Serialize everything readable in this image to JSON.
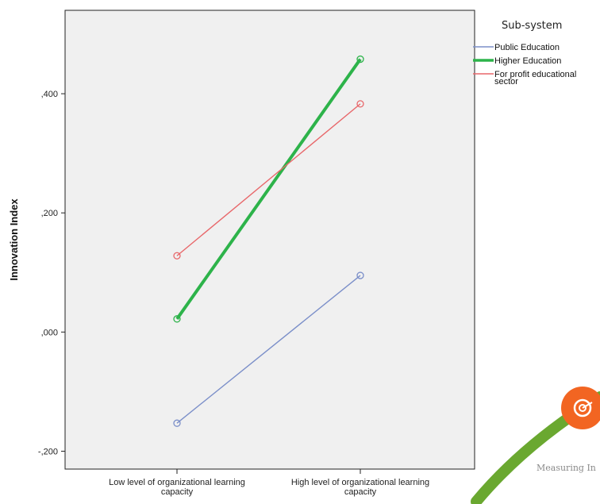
{
  "chart_data": {
    "type": "line",
    "title": "",
    "xlabel": "",
    "ylabel": "Innovation Index",
    "categories": [
      "Low level of organizational learning capacity",
      "High level of organizational learning capacity"
    ],
    "ylim": [
      -0.23,
      0.54
    ],
    "yticks": [
      -0.2,
      0.0,
      0.2,
      0.4
    ],
    "ytick_labels": [
      "-,200",
      ",000",
      ",200",
      ",400"
    ],
    "grid": false,
    "legend_title": "Sub-system",
    "legend_position": "top-right, outside plot",
    "plot_background": "#f0f0f0",
    "series": [
      {
        "name": "Public Education",
        "values": [
          -0.153,
          0.095
        ],
        "color": "#7b8fc9",
        "emphasis": false
      },
      {
        "name": "Higher Education",
        "values": [
          0.022,
          0.458
        ],
        "color": "#2db34a",
        "emphasis": true
      },
      {
        "name": "For profit educational sector",
        "values": [
          0.128,
          0.383
        ],
        "color": "#e8676a",
        "emphasis": false
      }
    ]
  },
  "watermark": {
    "text": "Measuring In",
    "icon": "target-icon",
    "badge_color": "#f26522",
    "swoosh_color": "#6aa830"
  }
}
